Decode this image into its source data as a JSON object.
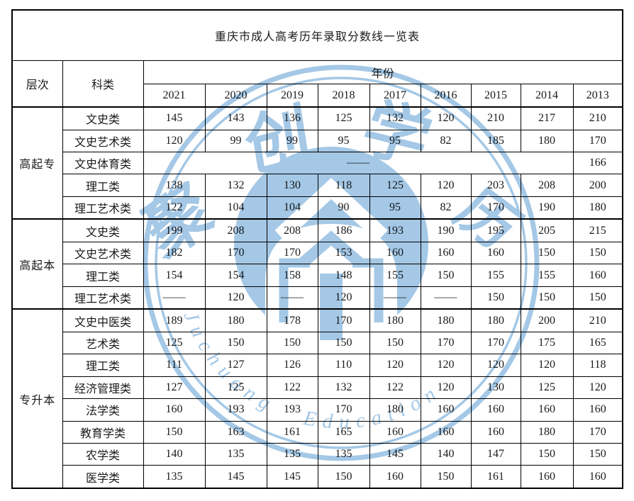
{
  "title": "重庆市成人高考历年录取分数线一览表",
  "table": {
    "level_header": "层次",
    "category_header": "科类",
    "year_header": "年份",
    "years": [
      "2021",
      "2020",
      "2019",
      "2018",
      "2017",
      "2016",
      "2015",
      "2014",
      "2013"
    ],
    "groups": [
      {
        "level": "高起专",
        "rows": [
          {
            "category": "文史类",
            "values": [
              "145",
              "143",
              "136",
              "125",
              "132",
              "120",
              "210",
              "217",
              "210"
            ]
          },
          {
            "category": "文史艺术类",
            "values": [
              "120",
              "99",
              "99",
              "95",
              "95",
              "82",
              "185",
              "180",
              "170"
            ]
          },
          {
            "category": "文史体育类",
            "merged": true,
            "merged_value": "——",
            "values": [
              "166"
            ]
          },
          {
            "category": "理工类",
            "values": [
              "138",
              "132",
              "130",
              "118",
              "125",
              "120",
              "203",
              "208",
              "200"
            ]
          },
          {
            "category": "理工艺术类",
            "values": [
              "122",
              "104",
              "104",
              "90",
              "95",
              "82",
              "170",
              "190",
              "180"
            ]
          }
        ]
      },
      {
        "level": "高起本",
        "rows": [
          {
            "category": "文史类",
            "values": [
              "199",
              "208",
              "208",
              "186",
              "193",
              "190",
              "195",
              "205",
              "215"
            ]
          },
          {
            "category": "文史艺术类",
            "values": [
              "182",
              "170",
              "170",
              "153",
              "160",
              "160",
              "160",
              "150",
              "150"
            ]
          },
          {
            "category": "理工类",
            "values": [
              "154",
              "154",
              "158",
              "148",
              "155",
              "150",
              "155",
              "155",
              "160"
            ]
          },
          {
            "category": "理工艺术类",
            "values": [
              "——",
              "120",
              "——",
              "120",
              "——",
              "——",
              "150",
              "150",
              "150"
            ]
          }
        ]
      },
      {
        "level": "专升本",
        "rows": [
          {
            "category": "文史中医类",
            "values": [
              "189",
              "180",
              "178",
              "170",
              "180",
              "180",
              "180",
              "200",
              "210"
            ]
          },
          {
            "category": "艺术类",
            "values": [
              "125",
              "150",
              "150",
              "150",
              "150",
              "170",
              "170",
              "175",
              "165"
            ]
          },
          {
            "category": "理工类",
            "values": [
              "111",
              "127",
              "126",
              "110",
              "120",
              "120",
              "120",
              "120",
              "118"
            ]
          },
          {
            "category": "经济管理类",
            "values": [
              "127",
              "125",
              "122",
              "132",
              "122",
              "120",
              "130",
              "125",
              "120"
            ]
          },
          {
            "category": "法学类",
            "values": [
              "160",
              "193",
              "193",
              "170",
              "180",
              "160",
              "160",
              "160",
              "160"
            ]
          },
          {
            "category": "教育学类",
            "values": [
              "150",
              "163",
              "161",
              "165",
              "160",
              "160",
              "160",
              "180",
              "170"
            ]
          },
          {
            "category": "农学类",
            "values": [
              "140",
              "135",
              "135",
              "135",
              "145",
              "140",
              "147",
              "150",
              "150"
            ]
          },
          {
            "category": "医学类",
            "values": [
              "135",
              "145",
              "145",
              "150",
              "160",
              "150",
              "161",
              "160",
              "160"
            ]
          }
        ]
      }
    ]
  },
  "watermark": {
    "color": "#a4c8e6",
    "chars": [
      "聚",
      "创",
      "学",
      "历"
    ],
    "arc_text": "Juchuang Education"
  }
}
